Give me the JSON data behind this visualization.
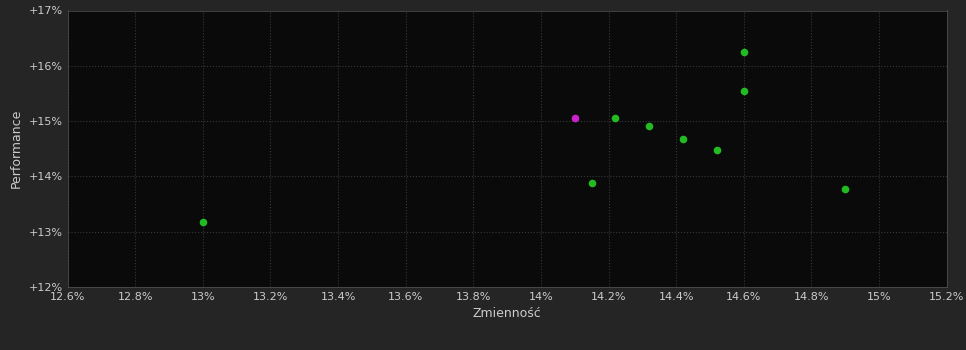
{
  "background_color": "#252525",
  "plot_bg_color": "#0a0a0a",
  "xlabel": "Zmienność",
  "ylabel": "Performance",
  "xlim": [
    0.126,
    0.152
  ],
  "ylim": [
    0.12,
    0.17
  ],
  "xticks": [
    0.126,
    0.128,
    0.13,
    0.132,
    0.134,
    0.136,
    0.138,
    0.14,
    0.142,
    0.144,
    0.146,
    0.148,
    0.15,
    0.152
  ],
  "yticks": [
    0.12,
    0.13,
    0.14,
    0.15,
    0.16,
    0.17
  ],
  "green_points": [
    [
      0.13,
      0.1318
    ],
    [
      0.1415,
      0.1388
    ],
    [
      0.1422,
      0.1505
    ],
    [
      0.1432,
      0.1492
    ],
    [
      0.1442,
      0.1468
    ],
    [
      0.1452,
      0.1448
    ],
    [
      0.146,
      0.1555
    ],
    [
      0.146,
      0.1625
    ],
    [
      0.149,
      0.1378
    ]
  ],
  "magenta_points": [
    [
      0.141,
      0.1505
    ]
  ],
  "green_color": "#22bb22",
  "magenta_color": "#cc22cc",
  "tick_color": "#cccccc",
  "label_color": "#cccccc",
  "border_color": "#555555",
  "grid_color": "#383838"
}
